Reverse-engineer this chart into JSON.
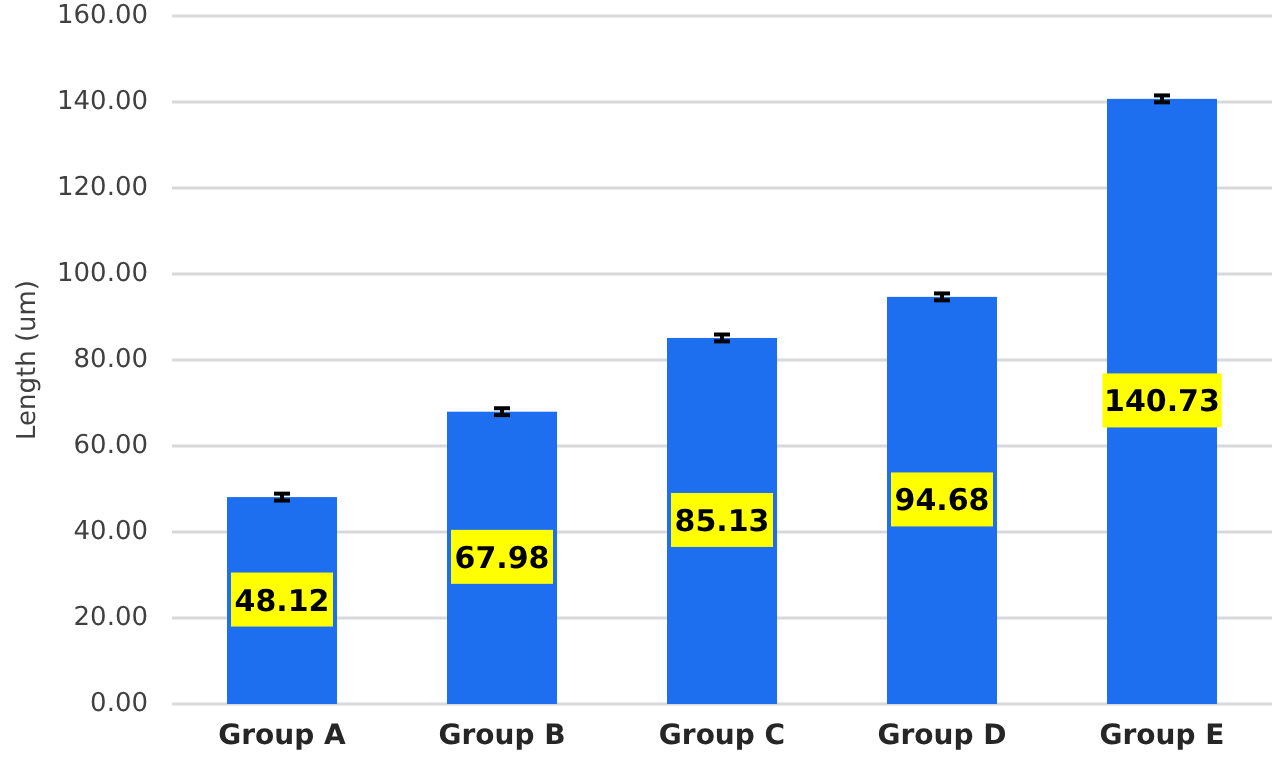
{
  "chart_data": {
    "type": "bar",
    "ylabel": "Length (um)",
    "categories": [
      "Group A",
      "Group B",
      "Group C",
      "Group D",
      "Group E"
    ],
    "values": [
      48.12,
      67.98,
      85.13,
      94.68,
      140.73
    ],
    "errors": [
      0.8,
      0.8,
      0.8,
      0.8,
      0.8
    ],
    "color": "#1e6ff0",
    "data_labels": true,
    "ylim": [
      0,
      160
    ],
    "yticks": [
      {
        "value": 0,
        "label": "0.00"
      },
      {
        "value": 20,
        "label": "20.00"
      },
      {
        "value": 40,
        "label": "40.00"
      },
      {
        "value": 60,
        "label": "60.00"
      },
      {
        "value": 80,
        "label": "80.00"
      },
      {
        "value": 100,
        "label": "100.00"
      },
      {
        "value": 120,
        "label": "120.00"
      },
      {
        "value": 140,
        "label": "140.00"
      },
      {
        "value": 160,
        "label": "160.00"
      }
    ],
    "grid": "y"
  }
}
